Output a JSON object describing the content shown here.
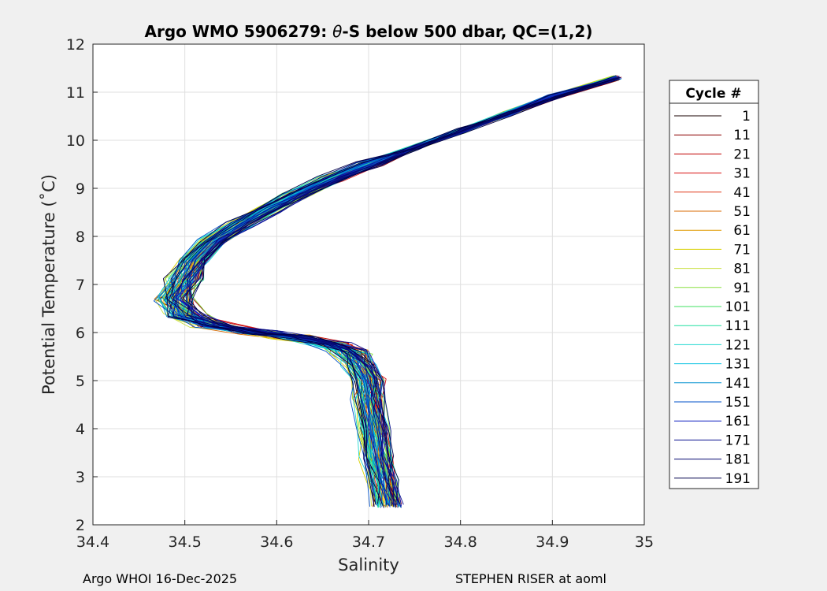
{
  "chart_data": {
    "type": "line",
    "title_prefix": "Argo WMO 5906279: ",
    "title_symbol": "θ",
    "title_suffix": "-S below 500 dbar,  QC=(1,2)",
    "xlabel": "Salinity",
    "ylabel": "Potential Temperature (˚C)",
    "xlim": [
      34.4,
      35.0
    ],
    "ylim": [
      2,
      12
    ],
    "xticks": [
      34.4,
      34.5,
      34.6,
      34.7,
      34.8,
      34.9,
      35.0
    ],
    "xtick_labels": [
      "34.4",
      "34.5",
      "34.6",
      "34.7",
      "34.8",
      "34.9",
      "35"
    ],
    "yticks": [
      2,
      3,
      4,
      5,
      6,
      7,
      8,
      9,
      10,
      11,
      12
    ],
    "ytick_labels": [
      "2",
      "3",
      "4",
      "5",
      "6",
      "7",
      "8",
      "9",
      "10",
      "11",
      "12"
    ],
    "grid": true,
    "legend_title": "Cycle #",
    "legend_position": "outside-right",
    "series": [
      {
        "name": "1",
        "color": "#1a0000"
      },
      {
        "name": "11",
        "color": "#8b0000"
      },
      {
        "name": "21",
        "color": "#c00000"
      },
      {
        "name": "31",
        "color": "#d81010"
      },
      {
        "name": "41",
        "color": "#e03a1a"
      },
      {
        "name": "51",
        "color": "#d96a00"
      },
      {
        "name": "61",
        "color": "#e09a00"
      },
      {
        "name": "71",
        "color": "#d8d000"
      },
      {
        "name": "81",
        "color": "#c8e040"
      },
      {
        "name": "91",
        "color": "#88e040"
      },
      {
        "name": "101",
        "color": "#40e060"
      },
      {
        "name": "111",
        "color": "#20e0a0"
      },
      {
        "name": "121",
        "color": "#20d8d0"
      },
      {
        "name": "131",
        "color": "#00c0e0"
      },
      {
        "name": "141",
        "color": "#0090d0"
      },
      {
        "name": "151",
        "color": "#0050c8"
      },
      {
        "name": "161",
        "color": "#1020c0"
      },
      {
        "name": "171",
        "color": "#0a1090"
      },
      {
        "name": "181",
        "color": "#060a70"
      },
      {
        "name": "191",
        "color": "#00004a"
      }
    ],
    "profile_shape": {
      "salinity": [
        34.97,
        34.9,
        34.85,
        34.8,
        34.75,
        34.7,
        34.66,
        34.62,
        34.59,
        34.56,
        34.53,
        34.51,
        34.5,
        34.49,
        34.5,
        34.53,
        34.58,
        34.62,
        34.66,
        34.68,
        34.69,
        34.7,
        34.7,
        34.705,
        34.71,
        34.715,
        34.72
      ],
      "theta": [
        11.3,
        10.9,
        10.55,
        10.2,
        9.85,
        9.5,
        9.2,
        8.85,
        8.55,
        8.25,
        7.9,
        7.5,
        7.1,
        6.7,
        6.35,
        6.15,
        6.0,
        5.9,
        5.75,
        5.6,
        5.3,
        5.0,
        4.6,
        4.0,
        3.4,
        2.9,
        2.4
      ]
    }
  },
  "footer": {
    "left": "Argo WHOI 16-Dec-2025",
    "right": "STEPHEN RISER at aoml"
  }
}
